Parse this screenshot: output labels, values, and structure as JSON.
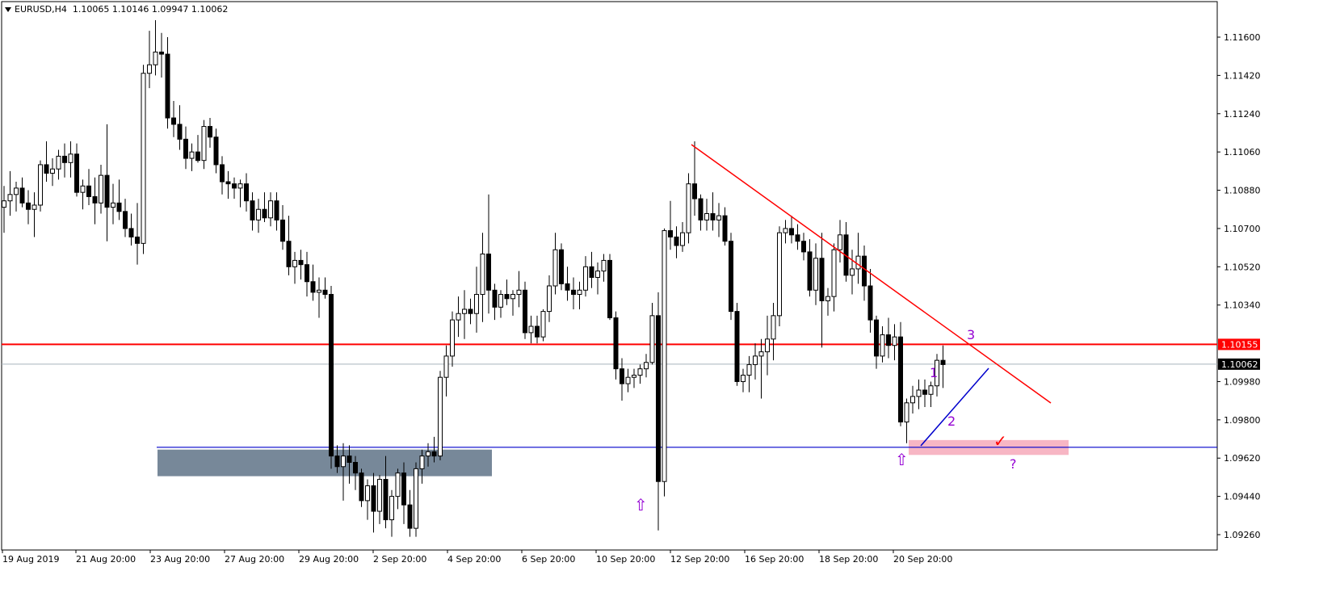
{
  "header": {
    "symbol": "EURUSD,H4",
    "ohlc": "1.10065 1.10146 1.09947 1.10062"
  },
  "colors": {
    "background": "#ffffff",
    "candle": "#000000",
    "trendline": "#ff0000",
    "support": "#0000cc",
    "support_zone": "#778899",
    "target_zone": "#f7b6c4",
    "marker": "#9400d3",
    "current_price_line": "#a9b4bc"
  },
  "chart_data": {
    "type": "candlestick",
    "title": "EURUSD,H4",
    "timeframe": "H4",
    "ylim": [
      1.092,
      1.117
    ],
    "price_ticks": [
      "1.11600",
      "1.11420",
      "1.11240",
      "1.11060",
      "1.10880",
      "1.10700",
      "1.10520",
      "1.10340",
      "1.09980",
      "1.09800",
      "1.09620",
      "1.09440",
      "1.09260"
    ],
    "time_ticks": [
      "19 Aug 2019",
      "21 Aug 20:00",
      "23 Aug 20:00",
      "27 Aug 20:00",
      "29 Aug 20:00",
      "2 Sep 20:00",
      "4 Sep 20:00",
      "6 Sep 20:00",
      "10 Sep 20:00",
      "12 Sep 20:00",
      "16 Sep 20:00",
      "18 Sep 20:00",
      "20 Sep 20:00"
    ],
    "candles": [
      [
        1.108,
        1.109,
        1.1068,
        1.1083
      ],
      [
        1.1083,
        1.1097,
        1.1076,
        1.1086
      ],
      [
        1.1086,
        1.1092,
        1.1078,
        1.1089
      ],
      [
        1.1089,
        1.1094,
        1.108,
        1.1082
      ],
      [
        1.1082,
        1.1088,
        1.1072,
        1.1079
      ],
      [
        1.1079,
        1.1087,
        1.1066,
        1.1081
      ],
      [
        1.1081,
        1.1102,
        1.1078,
        1.11
      ],
      [
        1.11,
        1.1111,
        1.1092,
        1.1096
      ],
      [
        1.1096,
        1.1103,
        1.109,
        1.1098
      ],
      [
        1.1098,
        1.1107,
        1.1093,
        1.1104
      ],
      [
        1.1104,
        1.111,
        1.1094,
        1.1101
      ],
      [
        1.1101,
        1.1111,
        1.1094,
        1.1105
      ],
      [
        1.1105,
        1.111,
        1.1085,
        1.1087
      ],
      [
        1.1087,
        1.1093,
        1.1079,
        1.109
      ],
      [
        1.109,
        1.1098,
        1.1081,
        1.1085
      ],
      [
        1.1085,
        1.1094,
        1.1072,
        1.1082
      ],
      [
        1.1082,
        1.11,
        1.1077,
        1.1095
      ],
      [
        1.1095,
        1.1119,
        1.1064,
        1.108
      ],
      [
        1.108,
        1.1091,
        1.1072,
        1.1082
      ],
      [
        1.1082,
        1.1093,
        1.1074,
        1.1078
      ],
      [
        1.1078,
        1.1084,
        1.1066,
        1.107
      ],
      [
        1.107,
        1.1077,
        1.1062,
        1.1066
      ],
      [
        1.1066,
        1.1082,
        1.1053,
        1.1063
      ],
      [
        1.1063,
        1.1147,
        1.1058,
        1.1143
      ],
      [
        1.1143,
        1.1163,
        1.1136,
        1.1147
      ],
      [
        1.1147,
        1.1168,
        1.1142,
        1.1153
      ],
      [
        1.1153,
        1.1162,
        1.1141,
        1.1152
      ],
      [
        1.1152,
        1.116,
        1.1117,
        1.1122
      ],
      [
        1.1122,
        1.113,
        1.1113,
        1.1119
      ],
      [
        1.1119,
        1.1128,
        1.1107,
        1.1112
      ],
      [
        1.1112,
        1.1118,
        1.1098,
        1.1103
      ],
      [
        1.1103,
        1.111,
        1.1097,
        1.1106
      ],
      [
        1.1106,
        1.1114,
        1.1101,
        1.1102
      ],
      [
        1.1102,
        1.1121,
        1.1098,
        1.1118
      ],
      [
        1.1118,
        1.1122,
        1.1108,
        1.1113
      ],
      [
        1.1113,
        1.1117,
        1.1096,
        1.11
      ],
      [
        1.11,
        1.1104,
        1.1086,
        1.1092
      ],
      [
        1.1092,
        1.1097,
        1.1084,
        1.1091
      ],
      [
        1.1091,
        1.1094,
        1.1084,
        1.1089
      ],
      [
        1.1089,
        1.1093,
        1.108,
        1.1091
      ],
      [
        1.1091,
        1.1096,
        1.1078,
        1.1083
      ],
      [
        1.1083,
        1.1087,
        1.1069,
        1.1074
      ],
      [
        1.1074,
        1.1084,
        1.1068,
        1.1079
      ],
      [
        1.1079,
        1.1087,
        1.1073,
        1.1075
      ],
      [
        1.1075,
        1.1087,
        1.1071,
        1.1083
      ],
      [
        1.1083,
        1.1087,
        1.1069,
        1.1074
      ],
      [
        1.1074,
        1.1081,
        1.106,
        1.1064
      ],
      [
        1.1064,
        1.1076,
        1.1048,
        1.1052
      ],
      [
        1.1052,
        1.1059,
        1.1044,
        1.1055
      ],
      [
        1.1055,
        1.106,
        1.1046,
        1.1053
      ],
      [
        1.1053,
        1.1059,
        1.1038,
        1.1045
      ],
      [
        1.1045,
        1.1053,
        1.1036,
        1.104
      ],
      [
        1.104,
        1.1047,
        1.1028,
        1.1041
      ],
      [
        1.1041,
        1.1047,
        1.1037,
        1.1039
      ],
      [
        1.1039,
        1.1043,
        1.0957,
        1.0963
      ],
      [
        1.0963,
        1.0968,
        1.0955,
        1.0958
      ],
      [
        1.0958,
        1.0969,
        1.0942,
        1.0963
      ],
      [
        1.0963,
        1.0968,
        1.095,
        1.096
      ],
      [
        1.096,
        1.0963,
        1.0947,
        1.0955
      ],
      [
        1.0955,
        1.0957,
        1.0939,
        1.0942
      ],
      [
        1.0942,
        1.0952,
        1.0933,
        1.0949
      ],
      [
        1.0949,
        1.0955,
        1.0927,
        1.0937
      ],
      [
        1.0937,
        1.0954,
        1.0931,
        1.0952
      ],
      [
        1.0952,
        1.0963,
        1.0929,
        1.0933
      ],
      [
        1.0933,
        1.0947,
        1.0925,
        1.0944
      ],
      [
        1.0944,
        1.0957,
        1.0938,
        1.0955
      ],
      [
        1.0955,
        1.096,
        1.0931,
        1.094
      ],
      [
        1.094,
        1.0947,
        1.0925,
        1.0929
      ],
      [
        1.0929,
        1.096,
        1.0925,
        1.0957
      ],
      [
        1.0957,
        1.0966,
        1.095,
        1.0963
      ],
      [
        1.0963,
        1.0969,
        1.0958,
        1.0965
      ],
      [
        1.0965,
        1.0972,
        1.096,
        1.0963
      ],
      [
        1.0963,
        1.1003,
        1.0961,
        1.1
      ],
      [
        1.1,
        1.1015,
        1.0991,
        1.101
      ],
      [
        1.101,
        1.1031,
        1.1005,
        1.1027
      ],
      [
        1.1027,
        1.1038,
        1.1019,
        1.103
      ],
      [
        1.103,
        1.1041,
        1.1018,
        1.1032
      ],
      [
        1.1032,
        1.1037,
        1.1025,
        1.103
      ],
      [
        1.103,
        1.1052,
        1.1021,
        1.1039
      ],
      [
        1.1039,
        1.1068,
        1.1026,
        1.1058
      ],
      [
        1.1058,
        1.1086,
        1.103,
        1.1041
      ],
      [
        1.1041,
        1.1044,
        1.1027,
        1.1033
      ],
      [
        1.1033,
        1.1041,
        1.1028,
        1.1039
      ],
      [
        1.1039,
        1.1046,
        1.1034,
        1.1037
      ],
      [
        1.1037,
        1.1041,
        1.1029,
        1.1039
      ],
      [
        1.1039,
        1.105,
        1.1033,
        1.1041
      ],
      [
        1.1041,
        1.1045,
        1.1018,
        1.1021
      ],
      [
        1.1021,
        1.1029,
        1.1016,
        1.1024
      ],
      [
        1.1024,
        1.1029,
        1.1016,
        1.1019
      ],
      [
        1.1019,
        1.1032,
        1.1017,
        1.1031
      ],
      [
        1.1031,
        1.1048,
        1.1026,
        1.1043
      ],
      [
        1.1043,
        1.1068,
        1.1039,
        1.106
      ],
      [
        1.106,
        1.1063,
        1.1041,
        1.1044
      ],
      [
        1.1044,
        1.1052,
        1.1036,
        1.1041
      ],
      [
        1.1041,
        1.1047,
        1.1032,
        1.1039
      ],
      [
        1.1039,
        1.1045,
        1.1032,
        1.1041
      ],
      [
        1.1041,
        1.1057,
        1.1038,
        1.1052
      ],
      [
        1.1052,
        1.1059,
        1.1042,
        1.1047
      ],
      [
        1.1047,
        1.1054,
        1.1039,
        1.105
      ],
      [
        1.105,
        1.1058,
        1.1045,
        1.1055
      ],
      [
        1.1055,
        1.1058,
        1.1027,
        1.1028
      ],
      [
        1.1028,
        1.1031,
        1.0999,
        1.1004
      ],
      [
        1.1004,
        1.1009,
        1.0989,
        1.0997
      ],
      [
        1.0997,
        1.1004,
        1.0993,
        1.1
      ],
      [
        1.1,
        1.1004,
        1.0995,
        1.1001
      ],
      [
        1.1001,
        1.1006,
        1.0997,
        1.1004
      ],
      [
        1.1004,
        1.1011,
        1.1,
        1.1007
      ],
      [
        1.1007,
        1.1035,
        1.1006,
        1.1029
      ],
      [
        1.1029,
        1.104,
        1.0928,
        1.0951
      ],
      [
        1.0951,
        1.107,
        1.0944,
        1.1069
      ],
      [
        1.1069,
        1.1083,
        1.106,
        1.1066
      ],
      [
        1.1066,
        1.1071,
        1.1056,
        1.1062
      ],
      [
        1.1062,
        1.1073,
        1.1059,
        1.1068
      ],
      [
        1.1068,
        1.1096,
        1.1063,
        1.1091
      ],
      [
        1.1091,
        1.1111,
        1.1076,
        1.1084
      ],
      [
        1.1084,
        1.1086,
        1.1069,
        1.1074
      ],
      [
        1.1074,
        1.1084,
        1.1069,
        1.1077
      ],
      [
        1.1077,
        1.1087,
        1.1069,
        1.1074
      ],
      [
        1.1074,
        1.1082,
        1.1066,
        1.1076
      ],
      [
        1.1076,
        1.108,
        1.1062,
        1.1064
      ],
      [
        1.1064,
        1.1068,
        1.1027,
        1.1031
      ],
      [
        1.1031,
        1.1035,
        1.0996,
        1.0998
      ],
      [
        1.0998,
        1.1004,
        1.0993,
        1.1001
      ],
      [
        1.1001,
        1.101,
        1.0993,
        1.1006
      ],
      [
        1.1006,
        1.1016,
        1.0999,
        1.101
      ],
      [
        1.101,
        1.1018,
        1.099,
        1.1012
      ],
      [
        1.1012,
        1.1029,
        1.1001,
        1.1018
      ],
      [
        1.1018,
        1.1035,
        1.1008,
        1.1029
      ],
      [
        1.1029,
        1.1071,
        1.1024,
        1.1068
      ],
      [
        1.1068,
        1.1074,
        1.1063,
        1.107
      ],
      [
        1.107,
        1.1076,
        1.1063,
        1.1067
      ],
      [
        1.1067,
        1.1072,
        1.106,
        1.1064
      ],
      [
        1.1064,
        1.1068,
        1.1055,
        1.1059
      ],
      [
        1.1059,
        1.1065,
        1.1038,
        1.1041
      ],
      [
        1.1041,
        1.1063,
        1.1034,
        1.1056
      ],
      [
        1.1056,
        1.1068,
        1.1014,
        1.1036
      ],
      [
        1.1036,
        1.1042,
        1.1029,
        1.1038
      ],
      [
        1.1038,
        1.1063,
        1.1031,
        1.106
      ],
      [
        1.106,
        1.1074,
        1.1054,
        1.1067
      ],
      [
        1.1067,
        1.1073,
        1.1045,
        1.1048
      ],
      [
        1.1048,
        1.106,
        1.1039,
        1.1051
      ],
      [
        1.1051,
        1.1068,
        1.1044,
        1.1057
      ],
      [
        1.1057,
        1.1062,
        1.1036,
        1.1043
      ],
      [
        1.1043,
        1.1051,
        1.1021,
        1.1027
      ],
      [
        1.1027,
        1.1029,
        1.1004,
        1.101
      ],
      [
        1.101,
        1.1024,
        1.1007,
        1.102
      ],
      [
        1.102,
        1.1028,
        1.1009,
        1.1015
      ],
      [
        1.1015,
        1.1025,
        1.1008,
        1.1019
      ],
      [
        1.1019,
        1.1026,
        1.0977,
        1.0979
      ],
      [
        1.0979,
        1.099,
        1.0969,
        1.0988
      ],
      [
        1.0988,
        1.0996,
        1.0983,
        1.0991
      ],
      [
        1.0991,
        1.0999,
        1.0985,
        1.0994
      ],
      [
        1.0994,
        1.0999,
        1.0986,
        1.0992
      ],
      [
        1.0992,
        1.0998,
        1.0986,
        1.0996
      ],
      [
        1.0996,
        1.1011,
        1.0991,
        1.1008
      ],
      [
        1.1008,
        1.1015,
        1.0995,
        1.1006
      ]
    ],
    "annotations": {
      "resistance_level": "1.10155",
      "current_price": "1.10062",
      "wave_labels": [
        "1",
        "2",
        "3"
      ],
      "question_mark": "?",
      "arrow_glyph": "⇧",
      "check_glyph": "✓"
    }
  }
}
